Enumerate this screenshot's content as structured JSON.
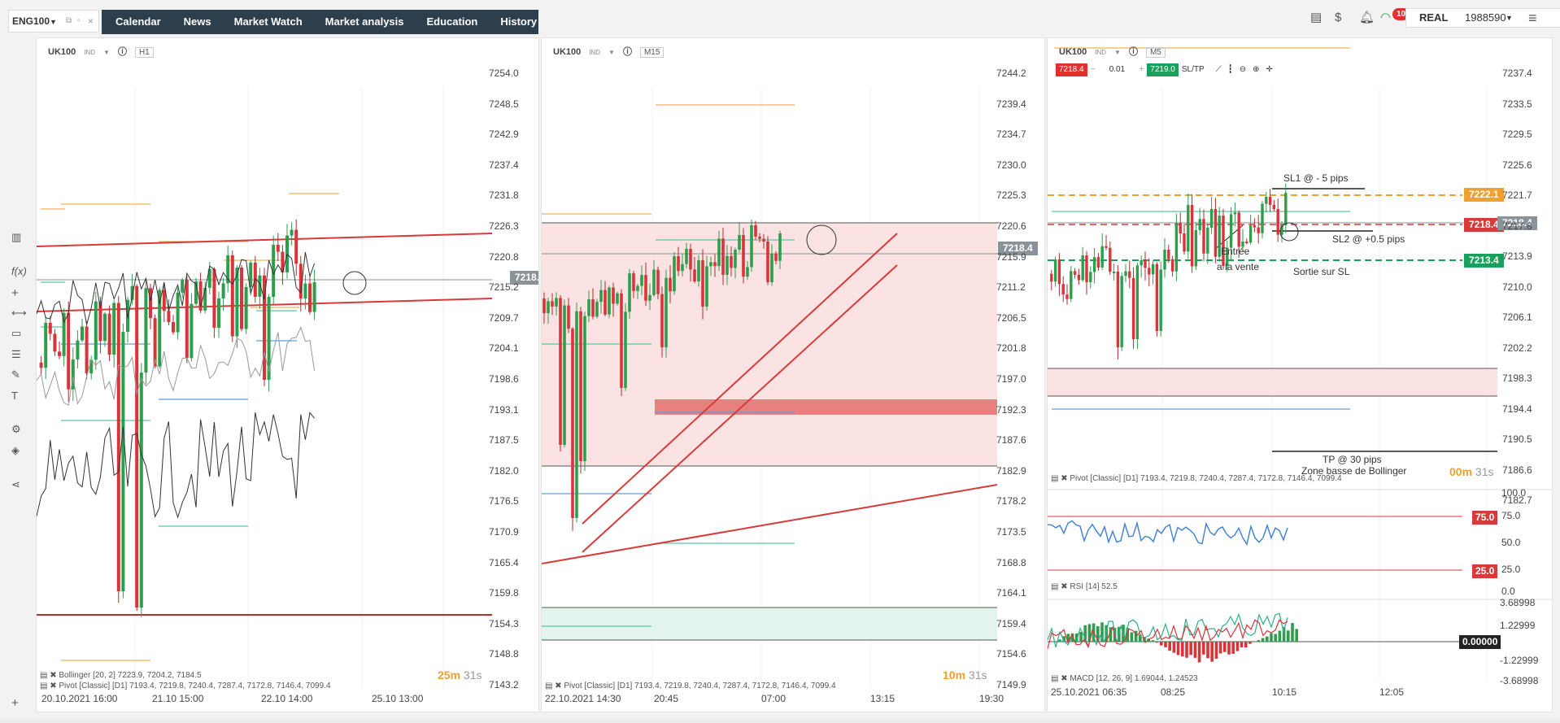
{
  "tab": {
    "symbol": "ENG100"
  },
  "nav": [
    "Calendar",
    "News",
    "Market Watch",
    "Market analysis",
    "Education",
    "History"
  ],
  "notifications": {
    "count": "10"
  },
  "account": {
    "type": "REAL",
    "number": "1988590"
  },
  "icons": [
    "layout-icon",
    "currency-icon",
    "bell-icon",
    "wifi-icon",
    "menu-icon",
    "bars-icon",
    "fx-icon",
    "plus-icon",
    "ruler-icon",
    "rect-icon",
    "fib-icon",
    "pen-icon",
    "text-icon",
    "adjust-icon",
    "layers-icon",
    "share-icon"
  ],
  "charts": [
    {
      "symbol": "UK100",
      "badge": "IND",
      "timeframe": "H1",
      "y_ticks": [
        "7254.0",
        "7248.5",
        "7242.9",
        "7237.4",
        "7231.8",
        "7226.3",
        "7220.8",
        "7215.2",
        "7209.7",
        "7204.1",
        "7198.6",
        "7193.1",
        "7187.5",
        "7182.0",
        "7176.5",
        "7170.9",
        "7165.4",
        "7159.8",
        "7154.3",
        "7148.8",
        "7143.2"
      ],
      "x_ticks": [
        "20.10.2021 16:00",
        "21.10 15:00",
        "22.10 14:00",
        "25.10 13:00"
      ],
      "price": "7218.4",
      "countdown_min": "25m",
      "countdown_sec": "31s",
      "legends": [
        "Bollinger [20, 2] 7223.9, 7204.2, 7184.5",
        "Pivot [Classic] [D1] 7193.4, 7219.8, 7240.4, 7287.4, 7172.8, 7146.4, 7099.4"
      ]
    },
    {
      "symbol": "UK100",
      "badge": "IND",
      "timeframe": "M15",
      "y_ticks": [
        "7244.2",
        "7239.4",
        "7234.7",
        "7230.0",
        "7225.3",
        "7220.6",
        "7215.9",
        "7211.2",
        "7206.5",
        "7201.8",
        "7197.0",
        "7192.3",
        "7187.6",
        "7182.9",
        "7178.2",
        "7173.5",
        "7168.8",
        "7164.1",
        "7159.4",
        "7154.6",
        "7149.9"
      ],
      "x_ticks": [
        "22.10.2021 14:30",
        "20:45",
        "07:00",
        "13:15",
        "19:30"
      ],
      "price": "7218.4",
      "countdown_min": "10m",
      "countdown_sec": "31s",
      "legends": [
        "Pivot [Classic] [D1] 7193.4, 7219.8, 7240.4, 7287.4, 7172.8, 7146.4, 7099.4"
      ]
    },
    {
      "symbol": "UK100",
      "badge": "IND",
      "timeframe": "M5",
      "order_bar": {
        "sell": "7218.4",
        "lot": "0.01",
        "buy": "7219.0",
        "sltp": "SL/TP"
      },
      "y_ticks": [
        "7237.4",
        "7233.5",
        "7229.5",
        "7225.6",
        "7221.7",
        "7217.8",
        "7213.9",
        "7210.0",
        "7206.1",
        "7202.2",
        "7198.3",
        "7194.4",
        "7190.5",
        "7186.6",
        "7182.7"
      ],
      "x_ticks": [
        "25.10.2021 06:35",
        "08:25",
        "10:15",
        "12:05"
      ],
      "price": "7218.4",
      "tag_orange": "7222.1",
      "tag_red": "7218.4",
      "tag_green": "7213.4",
      "countdown_min": "00m",
      "countdown_sec": "31s",
      "annotations": [
        "SL1 @ - 5 pips",
        "Entrée",
        "a la vente",
        "SL2 @ +0.5 pips",
        "Sortie sur SL",
        "TP @ 30 pips",
        "Zone basse de Bollinger"
      ],
      "legends": [
        "Pivot [Classic] [D1] 7193.4, 7219.8, 7240.4, 7287.4, 7172.8, 7146.4, 7099.4",
        "RSI [14] 52.5",
        "MACD [12, 26, 9] 1.69044, 1.24523"
      ],
      "rsi": {
        "ticks": [
          "100.0",
          "75.0",
          "50.0",
          "25.0",
          "0.0"
        ],
        "tag_high": "75.0",
        "tag_low": "25.0",
        "value": 52.5
      },
      "macd": {
        "ticks": [
          "3.68998",
          "1.22999",
          "-1.22999",
          "-3.68998"
        ],
        "tag": "0.00000"
      }
    }
  ]
}
